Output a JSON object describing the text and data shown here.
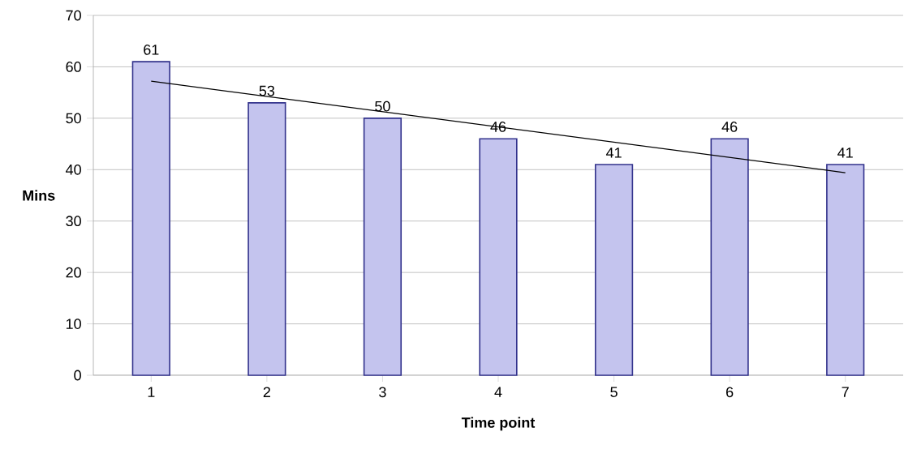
{
  "chart_data": {
    "type": "bar",
    "xlabel": "Time point",
    "ylabel": "Mins",
    "categories": [
      "1",
      "2",
      "3",
      "4",
      "5",
      "6",
      "7"
    ],
    "series": [
      {
        "color": "#c4c4ee",
        "values": [
          61,
          53,
          50,
          46,
          41,
          46,
          41
        ],
        "value_labels": [
          "61",
          "53",
          "50",
          "46",
          "41",
          "46",
          "41"
        ]
      },
      {
        "type": "line",
        "color": "#000000",
        "x": [
          "1",
          "7"
        ],
        "values": [
          57.2,
          39.4
        ]
      }
    ],
    "ylim": [
      0,
      70
    ],
    "yticks": [
      0,
      10,
      20,
      30,
      40,
      50,
      60,
      70
    ],
    "grid": "y"
  }
}
